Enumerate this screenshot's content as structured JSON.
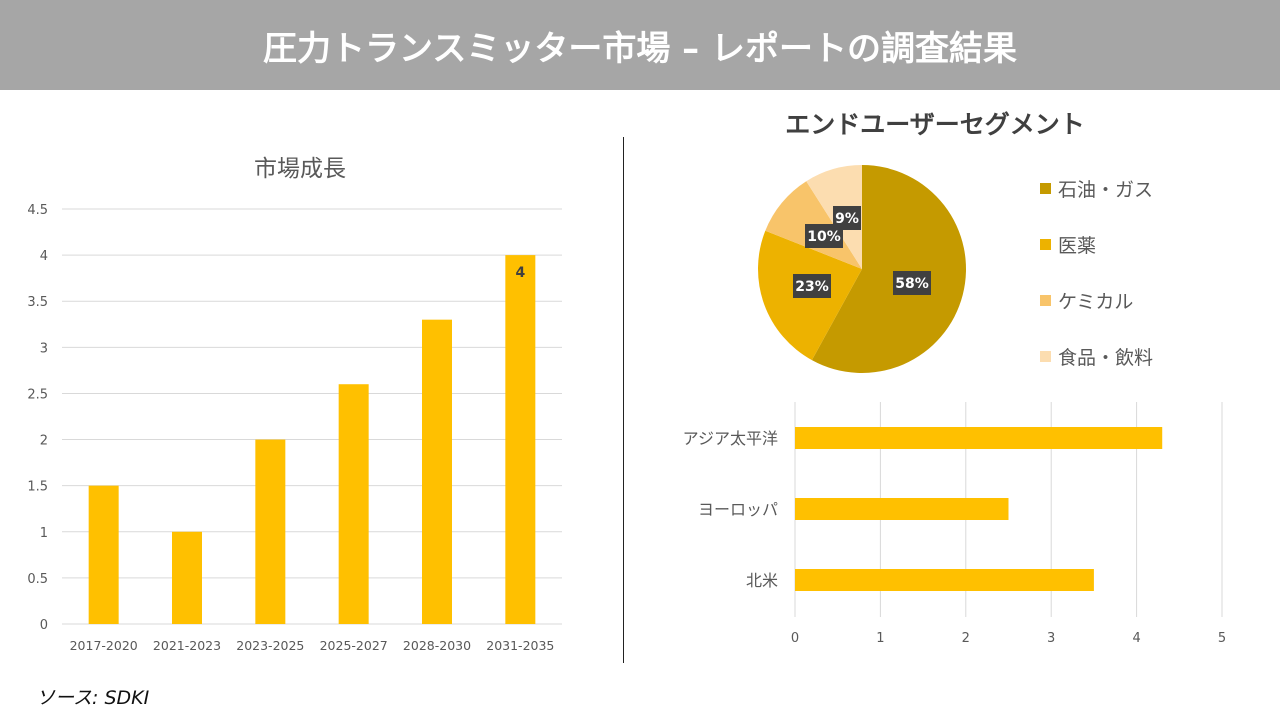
{
  "header": {
    "title": "圧力トランスミッター市場 – レポートの調査結果"
  },
  "source": "ソース: SDKI",
  "chart_data": [
    {
      "type": "bar",
      "title": "市場成長",
      "categories": [
        "2017-2020",
        "2021-2023",
        "2023-2025",
        "2025-2027",
        "2028-2030",
        "2031-2035"
      ],
      "values": [
        1.5,
        1,
        2,
        2.6,
        3.3,
        4
      ],
      "data_labels": {
        "2031-2035": "4"
      },
      "yticks": [
        "0",
        "0.5",
        "1",
        "1.5",
        "2",
        "2.5",
        "3",
        "3.5",
        "4",
        "4.5"
      ],
      "ylim": [
        0,
        4.5
      ],
      "grid": true,
      "color": "#FFC000"
    },
    {
      "type": "pie",
      "title": "エンドユーザーセグメント",
      "labels": [
        "石油・ガス",
        "医薬",
        "ケミカル",
        "食品・飲料"
      ],
      "values": [
        58,
        23,
        10,
        9
      ],
      "data_labels": [
        "58%",
        "23%",
        "10%",
        "9%"
      ],
      "colors": [
        "#C59A00",
        "#EDB200",
        "#F8C46A",
        "#FCDDB0"
      ],
      "legend": "right"
    },
    {
      "type": "bar",
      "orientation": "horizontal",
      "categories": [
        "アジア太平洋",
        "ヨーロッパ",
        "北米"
      ],
      "values": [
        4.3,
        2.5,
        3.5
      ],
      "xticks": [
        "0",
        "1",
        "2",
        "3",
        "4",
        "5"
      ],
      "xlim": [
        0,
        5
      ],
      "grid": true,
      "color": "#FFC000"
    }
  ]
}
